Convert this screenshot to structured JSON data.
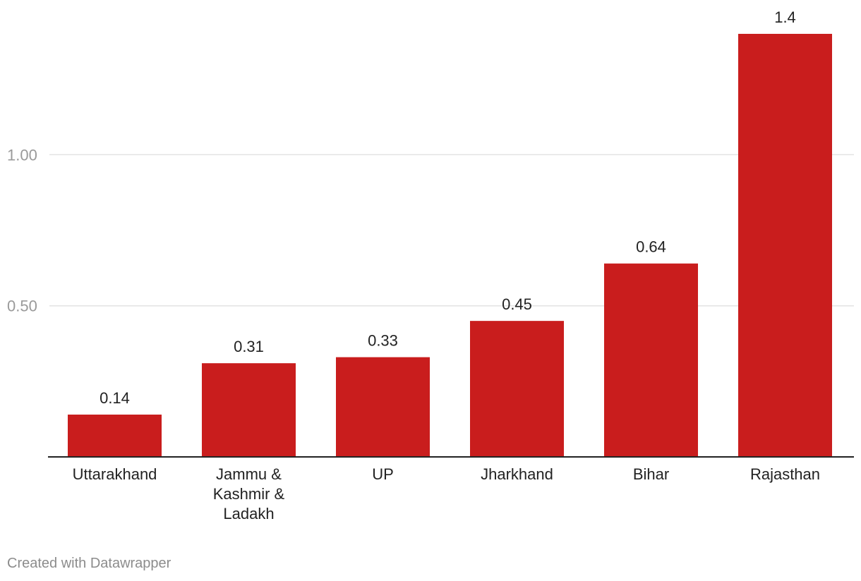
{
  "chart_data": {
    "type": "bar",
    "title": "",
    "xlabel": "",
    "ylabel": "",
    "categories": [
      [
        "Uttarakhand"
      ],
      [
        "Jammu &",
        "Kashmir &",
        "Ladakh"
      ],
      [
        "UP"
      ],
      [
        "Jharkhand"
      ],
      [
        "Bihar"
      ],
      [
        "Rajasthan"
      ]
    ],
    "values": [
      0.14,
      0.31,
      0.33,
      0.45,
      0.64,
      1.4
    ],
    "value_labels": [
      "0.14",
      "0.31",
      "0.33",
      "0.45",
      "0.64",
      "1.4"
    ],
    "y_ticks": [
      {
        "value": 0.5,
        "label": "0.50"
      },
      {
        "value": 1.0,
        "label": "1.00"
      }
    ],
    "ylim": [
      0,
      1.4
    ],
    "grid": true,
    "bar_color": "#c91d1d",
    "grid_color": "#e3e3e3",
    "axis_color": "#222222"
  },
  "footer": {
    "credit": "Created with Datawrapper"
  }
}
